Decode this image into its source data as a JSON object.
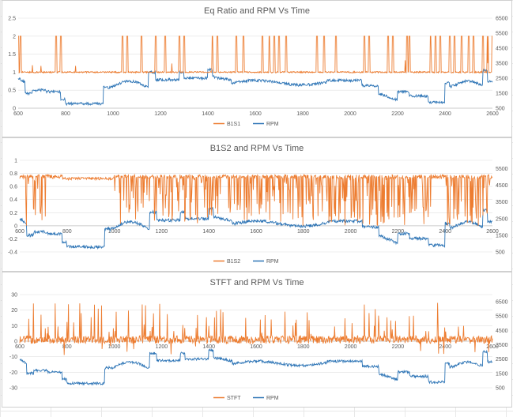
{
  "chart_data": [
    {
      "type": "line",
      "title": "Eq Ratio and RPM Vs Time",
      "x_ticks": [
        "600",
        "800",
        "1000",
        "1200",
        "1400",
        "1600",
        "1800",
        "2000",
        "2200",
        "2400",
        "2600"
      ],
      "xlim": [
        600,
        2600
      ],
      "y_ticks": [
        "0",
        "0.5",
        "1",
        "1.5",
        "2",
        "2.5"
      ],
      "ylim": [
        0,
        2.5
      ],
      "y2_ticks": [
        "500",
        "1500",
        "2500",
        "3500",
        "4500",
        "5500",
        "6500"
      ],
      "y2lim": [
        500,
        6500
      ],
      "legend": "bottom",
      "grid": true,
      "series": [
        {
          "name": "B1S1",
          "axis": "primary",
          "color": "#ED7D31"
        },
        {
          "name": "RPM",
          "axis": "secondary",
          "color": "#2E75B6"
        }
      ]
    },
    {
      "type": "line",
      "title": "B1S2 and RPM Vs Time",
      "x_ticks": [
        "600",
        "800",
        "1000",
        "1200",
        "1400",
        "1600",
        "1800",
        "2000",
        "2200",
        "2400",
        "2600"
      ],
      "xlim": [
        600,
        2600
      ],
      "y_ticks": [
        "-0.4",
        "-0.2",
        "0",
        "0.2",
        "0.4",
        "0.6",
        "0.8",
        "1"
      ],
      "ylim": [
        -0.4,
        1
      ],
      "y2_ticks": [
        "500",
        "1500",
        "2500",
        "3500",
        "4500",
        "5500"
      ],
      "y2lim": [
        500,
        6000
      ],
      "legend": "bottom",
      "grid": true,
      "series": [
        {
          "name": "B1S2",
          "axis": "primary",
          "color": "#ED7D31"
        },
        {
          "name": "RPM",
          "axis": "secondary",
          "color": "#2E75B6"
        }
      ]
    },
    {
      "type": "line",
      "title": "STFT and RPM Vs Time",
      "x_ticks": [
        "600",
        "800",
        "1000",
        "1200",
        "1400",
        "1600",
        "1800",
        "2000",
        "2200",
        "2400",
        "2600"
      ],
      "xlim": [
        600,
        2600
      ],
      "y_ticks": [
        "-30",
        "-20",
        "-10",
        "0",
        "10",
        "20",
        "30"
      ],
      "ylim": [
        -30,
        30
      ],
      "y2_ticks": [
        "500",
        "1500",
        "2500",
        "3500",
        "4500",
        "5500",
        "6500"
      ],
      "y2lim": [
        500,
        7000
      ],
      "legend": "bottom",
      "grid": true,
      "series": [
        {
          "name": "STFT",
          "axis": "primary",
          "color": "#ED7D31"
        },
        {
          "name": "RPM",
          "axis": "secondary",
          "color": "#2E75B6"
        }
      ]
    }
  ]
}
